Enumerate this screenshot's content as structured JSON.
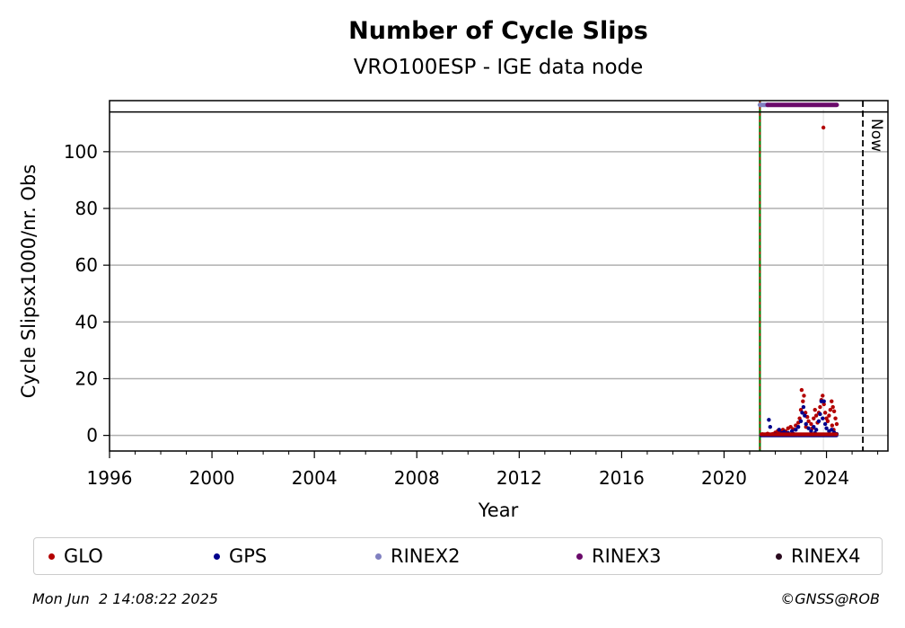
{
  "chart_data": {
    "type": "scatter",
    "title": "Number of Cycle Slips",
    "subtitle": "VRO100ESP - IGE data node",
    "xlabel": "Year",
    "ylabel": "Cycle Slipsx1000/nr. Obs",
    "xlim": [
      1996,
      2026.4
    ],
    "ylim": [
      -5.5,
      118
    ],
    "xticks": [
      1996,
      2000,
      2004,
      2008,
      2012,
      2016,
      2020,
      2024
    ],
    "yticks": [
      0,
      20,
      40,
      60,
      80,
      100
    ],
    "grid": "horizontal",
    "cap_line_y": 114,
    "start_line_x": 2021.4,
    "now_line_x": 2025.42,
    "now_label": "Now",
    "series": [
      {
        "name": "GLO",
        "color": "#b30000",
        "points": [
          [
            2021.5,
            0.4
          ],
          [
            2021.7,
            0.6
          ],
          [
            2021.9,
            0.5
          ],
          [
            2022.0,
            1.0
          ],
          [
            2022.1,
            1.6
          ],
          [
            2022.2,
            1.2
          ],
          [
            2022.3,
            2.0
          ],
          [
            2022.4,
            1.5
          ],
          [
            2022.5,
            2.5
          ],
          [
            2022.6,
            3.0
          ],
          [
            2022.7,
            2.2
          ],
          [
            2022.8,
            3.5
          ],
          [
            2022.9,
            4.5
          ],
          [
            2022.95,
            6.0
          ],
          [
            2023.0,
            9.0
          ],
          [
            2023.03,
            16.0
          ],
          [
            2023.08,
            12.0
          ],
          [
            2023.12,
            14.0
          ],
          [
            2023.18,
            8.0
          ],
          [
            2023.25,
            6.5
          ],
          [
            2023.3,
            5.0
          ],
          [
            2023.4,
            4.0
          ],
          [
            2023.5,
            6.0
          ],
          [
            2023.55,
            9.0
          ],
          [
            2023.6,
            7.0
          ],
          [
            2023.65,
            4.5
          ],
          [
            2023.7,
            8.0
          ],
          [
            2023.75,
            10.0
          ],
          [
            2023.8,
            12.5
          ],
          [
            2023.85,
            14.0
          ],
          [
            2023.88,
            108.5
          ],
          [
            2023.9,
            11.0
          ],
          [
            2023.95,
            8.0
          ],
          [
            2024.0,
            6.0
          ],
          [
            2024.05,
            5.0
          ],
          [
            2024.1,
            7.0
          ],
          [
            2024.15,
            9.0
          ],
          [
            2024.2,
            12.0
          ],
          [
            2024.25,
            10.0
          ],
          [
            2024.3,
            8.5
          ],
          [
            2024.35,
            6.0
          ],
          [
            2024.4,
            4.0
          ],
          [
            2023.2,
            3.0
          ],
          [
            2023.45,
            2.5
          ],
          [
            2024.22,
            3.5
          ],
          [
            2024.28,
            2.0
          ]
        ]
      },
      {
        "name": "GPS",
        "color": "#00008b",
        "points": [
          [
            2021.45,
            0.1
          ],
          [
            2021.6,
            0.2
          ],
          [
            2021.75,
            5.5
          ],
          [
            2021.8,
            3.0
          ],
          [
            2021.85,
            0.3
          ],
          [
            2022.0,
            0.5
          ],
          [
            2022.15,
            2.0
          ],
          [
            2022.25,
            0.8
          ],
          [
            2022.35,
            1.2
          ],
          [
            2022.5,
            0.9
          ],
          [
            2022.65,
            1.5
          ],
          [
            2022.8,
            2.0
          ],
          [
            2022.9,
            3.0
          ],
          [
            2023.0,
            5.0
          ],
          [
            2023.05,
            8.0
          ],
          [
            2023.1,
            10.0
          ],
          [
            2023.15,
            7.0
          ],
          [
            2023.2,
            4.0
          ],
          [
            2023.3,
            2.5
          ],
          [
            2023.4,
            1.5
          ],
          [
            2023.5,
            3.0
          ],
          [
            2023.6,
            2.0
          ],
          [
            2023.7,
            5.0
          ],
          [
            2023.75,
            7.5
          ],
          [
            2023.8,
            12.0
          ],
          [
            2023.85,
            6.0
          ],
          [
            2023.9,
            12.0
          ],
          [
            2023.95,
            4.0
          ],
          [
            2024.0,
            2.5
          ],
          [
            2024.1,
            1.5
          ],
          [
            2024.2,
            2.0
          ],
          [
            2024.3,
            1.0
          ],
          [
            2024.4,
            0.5
          ],
          [
            2022.1,
            0.3
          ],
          [
            2022.45,
            0.4
          ],
          [
            2022.7,
            0.6
          ],
          [
            2023.55,
            0.8
          ],
          [
            2024.25,
            0.3
          ]
        ]
      },
      {
        "name": "RINEX2",
        "color": "#8080c0",
        "points": [],
        "bar": [
          2021.4,
          2021.7
        ]
      },
      {
        "name": "RINEX3",
        "color": "#6a0a6a",
        "points": [],
        "bar": [
          2021.7,
          2024.4
        ]
      },
      {
        "name": "RINEX4",
        "color": "#2a0a1e",
        "points": []
      }
    ]
  },
  "legend": [
    {
      "name": "GLO",
      "color": "#b30000"
    },
    {
      "name": "GPS",
      "color": "#00008b"
    },
    {
      "name": "RINEX2",
      "color": "#8080c0"
    },
    {
      "name": "RINEX3",
      "color": "#6a0a6a"
    },
    {
      "name": "RINEX4",
      "color": "#2a0a1e"
    }
  ],
  "footer": {
    "timestamp": "Mon Jun  2 14:08:22 2025",
    "credit": "©GNSS@ROB"
  }
}
